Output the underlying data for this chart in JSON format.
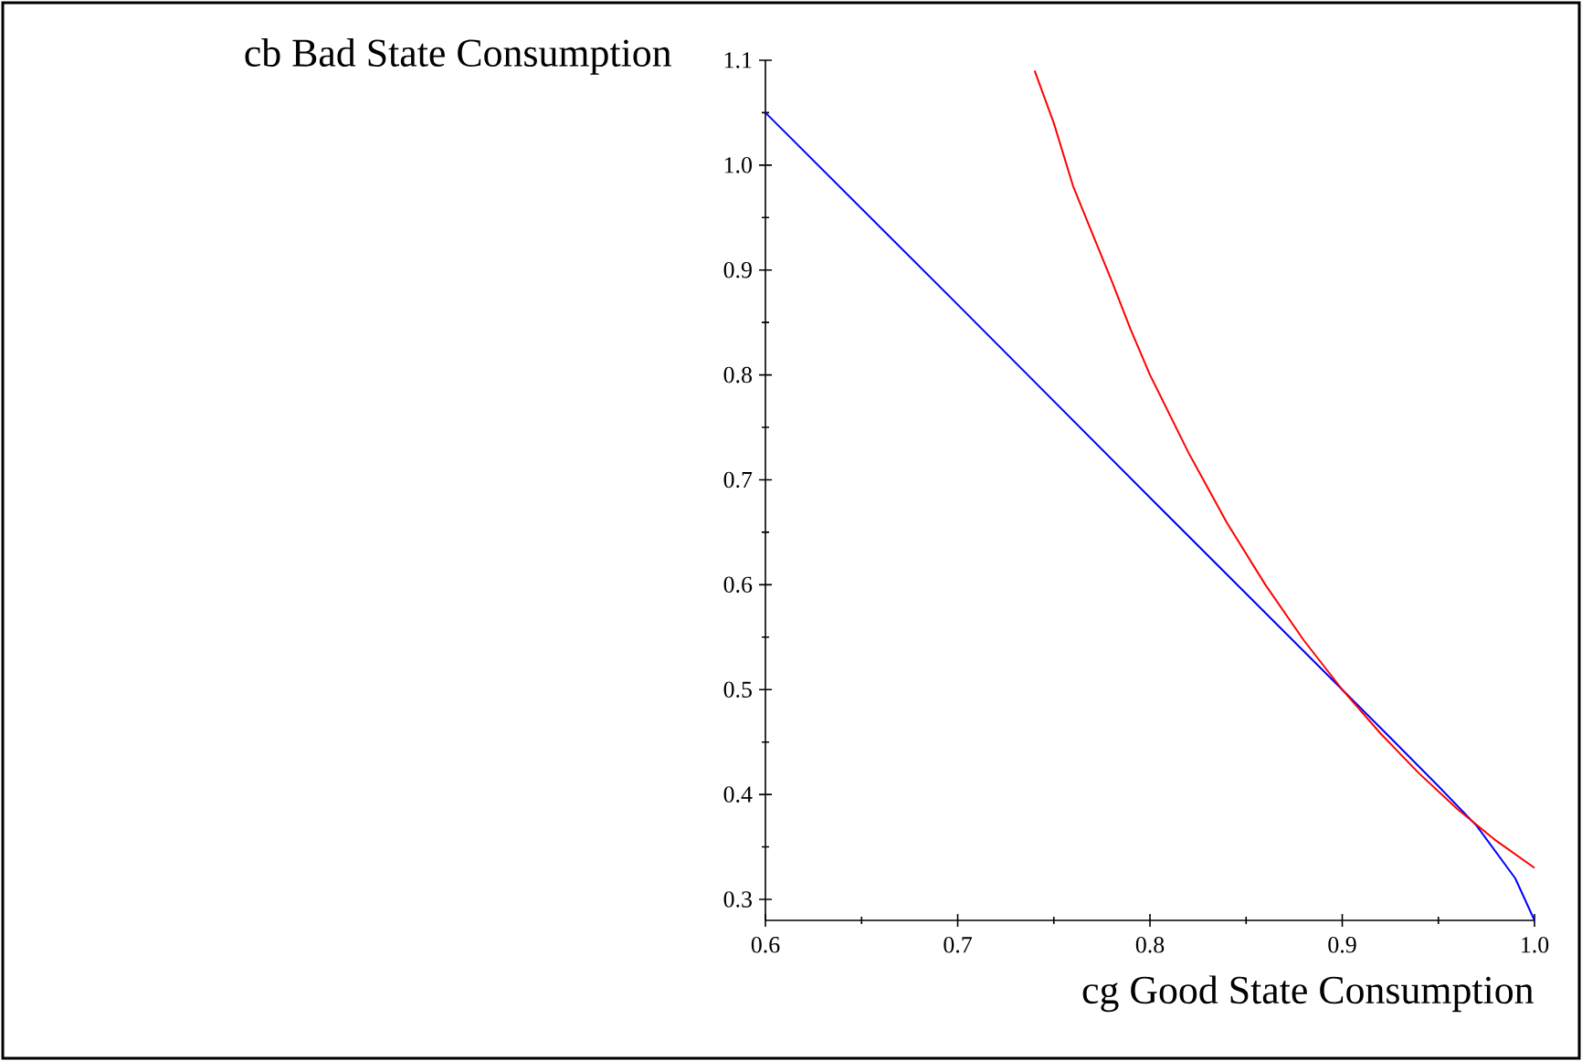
{
  "chart_data": {
    "type": "line",
    "xlabel": "cg Good State Consumption",
    "ylabel": "cb Bad State Consumption",
    "xlim": [
      0.6,
      1.0
    ],
    "ylim": [
      0.28,
      1.1
    ],
    "xticks": [
      0.6,
      0.7,
      0.8,
      0.9,
      {
        "value": 1,
        "label": "1.0"
      }
    ],
    "yticks": [
      0.3,
      0.4,
      0.5,
      0.6,
      0.7,
      0.8,
      0.9,
      {
        "value": 1,
        "label": "1.0"
      },
      1.1
    ],
    "series": [
      {
        "color": "#0000ff",
        "x": [
          0.6,
          0.7,
          0.8,
          0.9,
          0.93,
          0.95,
          0.97,
          0.99,
          1.0
        ],
        "values": [
          1.05,
          0.867,
          0.683,
          0.5,
          0.445,
          0.408,
          0.37,
          0.32,
          0.28
        ]
      },
      {
        "color": "#ff0000",
        "x": [
          0.74,
          0.75,
          0.76,
          0.77,
          0.78,
          0.79,
          0.8,
          0.82,
          0.84,
          0.86,
          0.88,
          0.9,
          0.92,
          0.94,
          0.96,
          0.98,
          1.0
        ],
        "values": [
          1.09,
          1.04,
          0.98,
          0.935,
          0.89,
          0.843,
          0.8,
          0.726,
          0.659,
          0.6,
          0.547,
          0.5,
          0.458,
          0.42,
          0.386,
          0.356,
          0.33
        ]
      }
    ]
  }
}
